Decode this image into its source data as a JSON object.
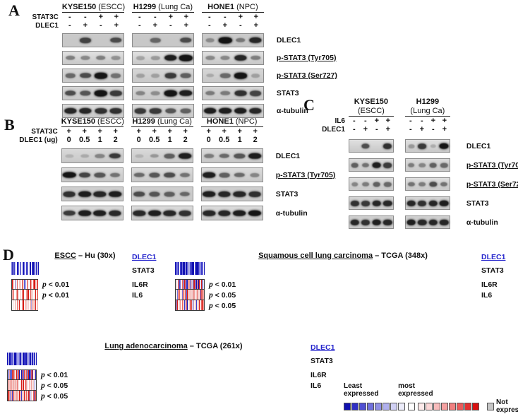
{
  "colors": {
    "scale": {
      "0": "#1212b2",
      "1": "#3d3dcb",
      "2": "#7575dd",
      "3": "#b0b0ec",
      "4": "#fbfbfd",
      "5": "#f5cbc9",
      "6": "#ef9e9a",
      "7": "#e6605a",
      "8": "#d61d16"
    },
    "link_blue": "#2323cc",
    "band_color": "#151515",
    "not_expressed_gray": "#c6c6c6"
  },
  "panelA": {
    "label": "A",
    "groups": [
      {
        "name": "KYSE150",
        "sub": "(ESCC)"
      },
      {
        "name": "H1299",
        "sub": "(Lung Ca)"
      },
      {
        "name": "HONE1",
        "sub": "(NPC)"
      }
    ],
    "conditions": [
      {
        "label": "STAT3C",
        "lanes": [
          "-",
          "-",
          "+",
          "+"
        ]
      },
      {
        "label": "DLEC1",
        "lanes": [
          "-",
          "+",
          "-",
          "+"
        ]
      }
    ],
    "rows": [
      {
        "target": "DLEC1",
        "underline": false,
        "bg": "#c9c9c9",
        "bands": [
          [
            0,
            0.65,
            0,
            0.6
          ],
          [
            0,
            0.45,
            0,
            0.6
          ],
          [
            0.25,
            0.95,
            0.35,
            0.8
          ]
        ]
      },
      {
        "target": "p-STAT3 (Tyr705)",
        "underline": true,
        "bg": "#e2e2e2",
        "bands": [
          [
            0.35,
            0.3,
            0.35,
            0.25
          ],
          [
            0.15,
            0.2,
            0.85,
            0.95
          ],
          [
            0.3,
            0.3,
            0.8,
            0.35
          ]
        ]
      },
      {
        "target": "p-STAT3 (Ser727)",
        "underline": true,
        "bg": "#d6d6d6",
        "bands": [
          [
            0.45,
            0.6,
            0.9,
            0.4
          ],
          [
            0.15,
            0.15,
            0.7,
            0.5
          ],
          [
            0.1,
            0.45,
            0.9,
            0.15
          ]
        ]
      },
      {
        "target": "STAT3",
        "underline": false,
        "bg": "#d6d6d6",
        "bands": [
          [
            0.6,
            0.55,
            0.95,
            0.7
          ],
          [
            0.3,
            0.25,
            0.95,
            0.85
          ],
          [
            0.35,
            0.35,
            0.75,
            0.65
          ]
        ]
      },
      {
        "target": "α-tubulin",
        "underline": false,
        "bg": "#dcdcdc",
        "bands": [
          [
            0.8,
            0.8,
            0.75,
            0.75
          ],
          [
            0.7,
            0.7,
            0.55,
            0.5
          ],
          [
            0.85,
            0.85,
            0.85,
            0.8
          ]
        ]
      }
    ]
  },
  "panelB": {
    "label": "B",
    "groups": [
      {
        "name": "KYSE150",
        "sub": "(ESCC)"
      },
      {
        "name": "H1299",
        "sub": "(Lung Ca)"
      },
      {
        "name": "HONE1",
        "sub": "(NPC)"
      }
    ],
    "conditions": [
      {
        "label": "STAT3C",
        "lanes": [
          "+",
          "+",
          "+",
          "+"
        ]
      },
      {
        "label": "DLEC1 (ug)",
        "lanes": [
          "0",
          "0.5",
          "1",
          "2"
        ]
      }
    ],
    "rows": [
      {
        "target": "DLEC1",
        "underline": false,
        "bg": "#d9d9d9",
        "bands": [
          [
            0.05,
            0.1,
            0.3,
            0.7
          ],
          [
            0.05,
            0.2,
            0.5,
            0.85
          ],
          [
            0.35,
            0.45,
            0.55,
            0.85
          ]
        ]
      },
      {
        "target": "p-STAT3 (Tyr705)",
        "underline": true,
        "bg": "#dcdcdc",
        "bands": [
          [
            0.95,
            0.65,
            0.55,
            0.4
          ],
          [
            0.45,
            0.55,
            0.6,
            0.4
          ],
          [
            0.85,
            0.5,
            0.45,
            0.3
          ]
        ]
      },
      {
        "target": "STAT3",
        "underline": false,
        "bg": "#cfcfcf",
        "bands": [
          [
            0.75,
            0.85,
            0.8,
            0.85
          ],
          [
            0.6,
            0.55,
            0.5,
            0.45
          ],
          [
            0.85,
            0.8,
            0.8,
            0.75
          ]
        ]
      },
      {
        "target": "α-tubulin",
        "underline": false,
        "bg": "#dcdcdc",
        "bands": [
          [
            0.7,
            0.85,
            0.85,
            0.8
          ],
          [
            0.8,
            0.85,
            0.8,
            0.75
          ],
          [
            0.8,
            0.8,
            0.85,
            0.9
          ]
        ]
      }
    ]
  },
  "panelC": {
    "label": "C",
    "groups": [
      {
        "name": "KYSE150",
        "sub": "(ESCC)"
      },
      {
        "name": "H1299",
        "sub": "(Lung Ca)"
      }
    ],
    "conditions": [
      {
        "label": "IL6",
        "lanes": [
          "-",
          "-",
          "+",
          "+"
        ]
      },
      {
        "label": "DLEC1",
        "lanes": [
          "-",
          "+",
          "-",
          "+"
        ]
      }
    ],
    "rows": [
      {
        "target": "DLEC1",
        "underline": false,
        "bg": "#e0e0e0",
        "bands": [
          [
            0,
            0.6,
            0,
            0.75
          ],
          [
            0.2,
            0.7,
            0.1,
            0.9
          ]
        ]
      },
      {
        "target": "p-STAT3 (Tyr705)",
        "underline": true,
        "bg": "#dadada",
        "bands": [
          [
            0.5,
            0.4,
            0.85,
            0.7
          ],
          [
            0.35,
            0.3,
            0.5,
            0.45
          ]
        ]
      },
      {
        "target": "p-STAT3 (Ser727)",
        "underline": true,
        "bg": "#dedede",
        "bands": [
          [
            0.3,
            0.35,
            0.5,
            0.45
          ],
          [
            0.4,
            0.35,
            0.6,
            0.4
          ]
        ]
      },
      {
        "target": "STAT3",
        "underline": false,
        "bg": "#d4d4d4",
        "bands": [
          [
            0.75,
            0.7,
            0.8,
            0.8
          ],
          [
            0.8,
            0.75,
            0.8,
            0.85
          ]
        ]
      },
      {
        "target": "α-tubulin",
        "underline": false,
        "bg": "#cfcfcf",
        "bands": [
          [
            0.8,
            0.75,
            0.85,
            0.8
          ],
          [
            0.85,
            0.8,
            0.8,
            0.8
          ]
        ]
      }
    ]
  },
  "panelD": {
    "label": "D",
    "p_symbol": "p",
    "heatmaps": [
      {
        "id": "escc",
        "title": {
          "u": "ESCC",
          "rest": " – Hu (30x)"
        },
        "rows": [
          {
            "gene": "DLEC1",
            "link": true,
            "p": "",
            "cells": [
              "2001340120",
              "3410231034",
              "0001003100"
            ]
          },
          {
            "gene": "STAT3",
            "link": false,
            "p": "< 0.01",
            "cells": [
              "8745247456",
              "4845124674",
              "5864788587"
            ]
          },
          {
            "gene": "IL6R",
            "link": false,
            "p": "< 0.01",
            "cells": [
              "6574468544",
              "5768446688",
              "5756445867"
            ]
          },
          {
            "gene": "IL6",
            "link": false,
            "p": "",
            "cells": [
              "4546447584",
              "4588465545",
              "4637564846"
            ]
          }
        ]
      },
      {
        "id": "squamous",
        "title": {
          "u": "Squamous cell lung carcinoma",
          "rest": " – TCGA (348x)"
        },
        "rows": [
          {
            "gene": "DLEC1",
            "link": true,
            "p": "",
            "cells": [
              "1020130241",
              "2010320142",
              "0103120014",
              "2010310240",
              "1031204010",
              "2130014203",
              "1020104210",
              "3012031024",
              "0120103104",
              "2012030140",
              "2013102401",
              "0203120410"
            ]
          },
          {
            "gene": "STAT3",
            "link": false,
            "p": "< 0.01",
            "cells": [
              "7481527460",
              "8473641852",
              "7458146370",
              "8547216480",
              "5738246185",
              "0474857316",
              "8457408251",
              "7468035741",
              "8526471580",
              "4637285140",
              "7584036147",
              "2847516084"
            ]
          },
          {
            "gene": "IL6R",
            "link": false,
            "p": "< 0.05",
            "cells": [
              "6547458264",
              "7485647514",
              "8465745826",
              "4754861457",
              "5846475146",
              "8547564725",
              "4865746257",
              "1475846547",
              "6584745265",
              "7456485174",
              "5647584625",
              "4756847456"
            ]
          },
          {
            "gene": "IL6",
            "link": false,
            "p": "< 0.05",
            "cells": [
              "5746256847",
              "4865745286",
              "1754846572",
              "8457465814",
              "6547285746",
              "0485674585",
              "7464585276",
              "8465147565",
              "4756284651",
              "5847465725",
              "6485746158",
              "4765845746"
            ]
          }
        ]
      },
      {
        "id": "adeno",
        "title": {
          "u": "Lung adenocarcinoma",
          "rest": " – TCGA (261x)"
        },
        "rows": [
          {
            "gene": "DLEC1",
            "link": true,
            "p": "",
            "cells": [
              "1031024120",
              "0131004202",
              "1300142031",
              "0210420130",
              "1203102401",
              "2010310420",
              "1203014020",
              "1310240102",
              "0312041020",
              "1302104013",
              "0213001420"
            ]
          },
          {
            "gene": "STAT3",
            "link": false,
            "p": "< 0.01",
            "cells": [
              "7458146370",
              "8547216480",
              "5738246185",
              "0474857316",
              "8457408251",
              "7468035741",
              "8526471580",
              "4637285140",
              "7584036147",
              "2847516084",
              "7481527460"
            ]
          },
          {
            "gene": "IL6R",
            "link": false,
            "p": "< 0.05",
            "cells": [
              "8465745826",
              "4754861457",
              "5846475146",
              "8547564725",
              "4865746257",
              "1475846547",
              "6584745265",
              "7456485174",
              "5647584625",
              "4756847456",
              "6547458264"
            ]
          },
          {
            "gene": "IL6",
            "link": false,
            "p": "< 0.05",
            "cells": [
              "1754846572",
              "8457465814",
              "6547285746",
              "0485674585",
              "7464585276",
              "8465147565",
              "4756284651",
              "5847465725",
              "6485746158",
              "4765845746",
              "5746256847"
            ]
          }
        ]
      }
    ],
    "legend": {
      "least_label": "Least expressed",
      "most_label": "most expressed",
      "not_label": "Not expressed",
      "blue_scale": [
        "#1010b0",
        "#3030c4",
        "#5050d2",
        "#7070dc",
        "#9090e6",
        "#b0b0ee",
        "#d0d0f4",
        "#ececfa"
      ],
      "mid": "#ffffff",
      "red_scale": [
        "#fdeaea",
        "#fbd6d6",
        "#f8bcbc",
        "#f4a0a0",
        "#f08080",
        "#ea5a5a",
        "#e23030",
        "#d81010"
      ],
      "not_color": "#c6c6c6"
    }
  }
}
